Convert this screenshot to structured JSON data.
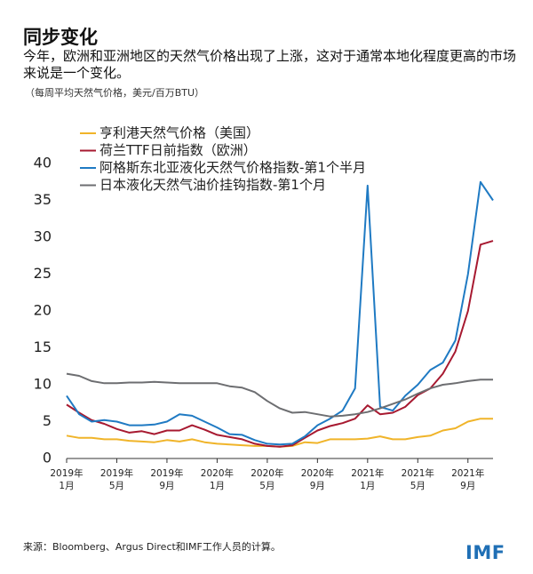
{
  "chart_data": {
    "type": "line",
    "title": "同步变化",
    "subtitle": "今年，欧洲和亚洲地区的天然气价格出现了上涨，这对于通常本地化程度更高的市场来说是一个变化。",
    "note": "（每周平均天然气价格，美元/百万BTU）",
    "source": "来源：Bloomberg、Argus Direct和IMF工作人员的计算。",
    "logo": "IMF",
    "x": [
      "2019-01",
      "2019-02",
      "2019-03",
      "2019-04",
      "2019-05",
      "2019-06",
      "2019-07",
      "2019-08",
      "2019-09",
      "2019-10",
      "2019-11",
      "2019-12",
      "2020-01",
      "2020-02",
      "2020-03",
      "2020-04",
      "2020-05",
      "2020-06",
      "2020-07",
      "2020-08",
      "2020-09",
      "2020-10",
      "2020-11",
      "2020-12",
      "2021-01",
      "2021-02",
      "2021-03",
      "2021-04",
      "2021-05",
      "2021-06",
      "2021-07",
      "2021-08",
      "2021-09",
      "2021-10",
      "2021-11"
    ],
    "xlim": [
      "2019-01",
      "2021-11"
    ],
    "xticks": [
      {
        "value": "2019-01",
        "label": "2019年\n1月"
      },
      {
        "value": "2019-05",
        "label": "2019年\n5月"
      },
      {
        "value": "2019-09",
        "label": "2019年\n9月"
      },
      {
        "value": "2020-01",
        "label": "2020年\n1月"
      },
      {
        "value": "2020-05",
        "label": "2020年\n5月"
      },
      {
        "value": "2020-09",
        "label": "2020年\n9月"
      },
      {
        "value": "2021-01",
        "label": "2021年\n1月"
      },
      {
        "value": "2021-05",
        "label": "2021年\n5月"
      },
      {
        "value": "2021-09",
        "label": "2021年\n9月"
      }
    ],
    "ylim": [
      0,
      40
    ],
    "yticks": [
      0,
      5,
      10,
      15,
      20,
      25,
      30,
      35,
      40
    ],
    "series": [
      {
        "name": "亨利港天然气价格（美国）",
        "color": "#f0b429",
        "values": [
          3.1,
          2.8,
          2.8,
          2.6,
          2.6,
          2.4,
          2.3,
          2.2,
          2.5,
          2.3,
          2.6,
          2.2,
          2.0,
          1.9,
          1.8,
          1.7,
          1.7,
          1.6,
          1.7,
          2.2,
          2.1,
          2.6,
          2.6,
          2.6,
          2.7,
          3.0,
          2.6,
          2.6,
          2.9,
          3.1,
          3.8,
          4.1,
          5.0,
          5.4,
          5.4
        ]
      },
      {
        "name": "荷兰TTF日前指数（欧洲）",
        "color": "#a71930",
        "values": [
          7.3,
          6.2,
          5.2,
          4.7,
          4.0,
          3.5,
          3.7,
          3.3,
          3.8,
          3.8,
          4.5,
          3.9,
          3.2,
          2.9,
          2.6,
          2.0,
          1.7,
          1.6,
          1.8,
          2.8,
          3.8,
          4.4,
          4.8,
          5.4,
          7.2,
          6.0,
          6.2,
          7.0,
          8.6,
          9.5,
          11.5,
          14.5,
          20,
          29,
          29.5
        ]
      },
      {
        "name": "阿格斯东北亚液化天然气价格指数-第1个半月",
        "color": "#1f7ac3",
        "values": [
          8.5,
          6.0,
          5.0,
          5.2,
          5.0,
          4.5,
          4.5,
          4.6,
          5.0,
          6.0,
          5.8,
          5.0,
          4.2,
          3.3,
          3.2,
          2.5,
          2.0,
          1.9,
          2.0,
          3.0,
          4.5,
          5.4,
          6.5,
          9.5,
          37,
          7.0,
          6.5,
          8.5,
          10,
          12,
          13,
          16,
          25,
          37.5,
          35
        ]
      },
      {
        "name": "日本液化天然气油价挂钩指数-第1个月",
        "color": "#6d6e71",
        "values": [
          11.5,
          11.2,
          10.5,
          10.2,
          10.2,
          10.3,
          10.3,
          10.4,
          10.3,
          10.2,
          10.2,
          10.2,
          10.2,
          9.8,
          9.6,
          9.0,
          7.8,
          6.8,
          6.2,
          6.3,
          6.0,
          5.7,
          5.8,
          6.0,
          6.3,
          6.8,
          7.4,
          8.0,
          8.8,
          9.5,
          10,
          10.2,
          10.5,
          10.7,
          10.7
        ]
      }
    ]
  }
}
